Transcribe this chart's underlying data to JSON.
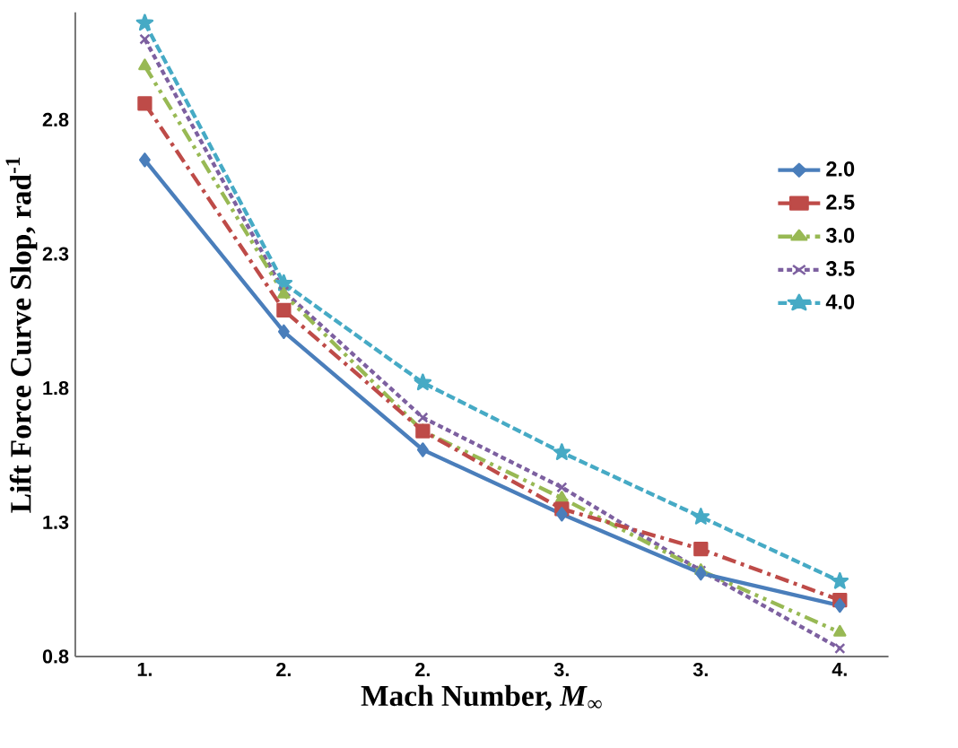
{
  "chart_data": {
    "type": "line",
    "xlabel": "Mach Number,  *M*$_{∞}$",
    "ylabel": "**Lift Force Curve Slop, rad**$^{-1}$",
    "categories": [
      "1.",
      "2.",
      "2.",
      "3.",
      "3.",
      "4."
    ],
    "ylim": [
      0.8,
      3.2
    ],
    "yticks": [
      0.8,
      1.3,
      1.8,
      2.3,
      2.8
    ],
    "grid": false,
    "legend": "right",
    "series": [
      {
        "name": "2.0",
        "color": "#4a7ebb",
        "marker": "diamond",
        "line_style": "solid",
        "values": [
          2.65,
          2.01,
          1.57,
          1.33,
          1.11,
          0.99
        ]
      },
      {
        "name": "2.5",
        "color": "#be4b48",
        "marker": "square",
        "line_style": "dashdot",
        "values": [
          2.86,
          2.09,
          1.64,
          1.35,
          1.2,
          1.01
        ]
      },
      {
        "name": "3.0",
        "color": "#98b954",
        "marker": "triangle",
        "line_style": "dashdotdot",
        "values": [
          3.0,
          2.15,
          1.64,
          1.39,
          1.12,
          0.89
        ]
      },
      {
        "name": "3.5",
        "color": "#7d60a0",
        "marker": "cross",
        "line_style": "dotted",
        "values": [
          3.1,
          2.16,
          1.69,
          1.43,
          1.12,
          0.83
        ]
      },
      {
        "name": "4.0",
        "color": "#46aac5",
        "marker": "star",
        "line_style": "dashed",
        "values": [
          3.16,
          2.19,
          1.82,
          1.56,
          1.32,
          1.08
        ]
      }
    ]
  }
}
